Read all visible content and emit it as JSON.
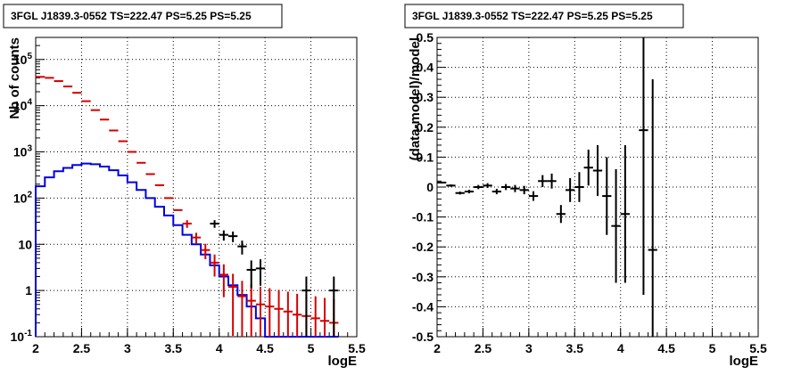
{
  "chart_data": [
    {
      "type": "histogram",
      "title": "3FGL J1839.3-0552 TS=222.47 PS=5.25 PS=5.25",
      "xlabel": "logE",
      "ylabel": "Nb of counts",
      "xlim": [
        2,
        5.5
      ],
      "ylim": [
        0.1,
        300000
      ],
      "yscale": "log",
      "grid": true,
      "x_ticks": [
        "2",
        "2.5",
        "3",
        "3.5",
        "4",
        "4.5",
        "5",
        "5.5"
      ],
      "y_ticks": [
        "10^-1",
        "1",
        "10",
        "10^2",
        "10^3",
        "10^4",
        "10^5"
      ],
      "series": [
        {
          "style": "red-markers-with-errors",
          "color": "#d40000",
          "x": [
            2.05,
            2.15,
            2.25,
            2.35,
            2.45,
            2.55,
            2.65,
            2.75,
            2.85,
            2.95,
            3.05,
            3.15,
            3.25,
            3.35,
            3.45,
            3.55,
            3.65,
            3.75,
            3.85,
            3.95,
            4.05,
            4.15,
            4.25,
            4.35,
            4.45,
            4.55,
            4.65,
            4.75,
            4.85,
            4.95,
            5.05,
            5.15,
            5.25
          ],
          "y": [
            42000,
            40000,
            34000,
            26000,
            19000,
            12500,
            8000,
            5000,
            2900,
            1700,
            1000,
            580,
            330,
            190,
            100,
            55,
            28,
            14,
            7.5,
            4,
            2.2,
            1.2,
            0.75,
            0.6,
            0.5,
            0.45,
            0.4,
            0.35,
            0.3,
            0.28,
            0.25,
            0.22,
            0.2
          ]
        },
        {
          "style": "blue-step",
          "color": "#0000e0",
          "x": [
            2.05,
            2.15,
            2.25,
            2.35,
            2.45,
            2.55,
            2.65,
            2.75,
            2.85,
            2.95,
            3.05,
            3.15,
            3.25,
            3.35,
            3.45,
            3.55,
            3.65,
            3.75,
            3.85,
            3.95,
            4.05,
            4.15,
            4.25,
            4.35,
            4.45,
            4.55,
            4.65,
            4.75,
            4.85,
            4.95,
            5.05,
            5.15,
            5.25
          ],
          "y": [
            180,
            280,
            380,
            450,
            520,
            560,
            540,
            480,
            400,
            310,
            220,
            150,
            100,
            65,
            42,
            26,
            16,
            10,
            6,
            3.5,
            2,
            1.3,
            0.8,
            0.45,
            0.25,
            0.1,
            0.1,
            0.1,
            0.1,
            0.1,
            0.1,
            0.1,
            0.1
          ]
        },
        {
          "style": "black-markers-with-errors",
          "color": "#000000",
          "x": [
            3.95,
            4.05,
            4.15,
            4.25,
            4.35,
            4.45,
            4.95,
            5.25
          ],
          "y": [
            28,
            16,
            15,
            9,
            2.8,
            3,
            1,
            1
          ]
        }
      ]
    },
    {
      "type": "scatter",
      "title": "3FGL J1839.3-0552 TS=222.47 PS=5.25 PS=5.25",
      "xlabel": "logE",
      "ylabel": "(data-model)/model",
      "xlim": [
        2,
        5.5
      ],
      "ylim": [
        -0.5,
        0.5
      ],
      "grid": true,
      "x_ticks": [
        "2",
        "2.5",
        "3",
        "3.5",
        "4",
        "4.5",
        "5",
        "5.5"
      ],
      "y_ticks": [
        "-0.5",
        "-0.4",
        "-0.3",
        "-0.2",
        "-0.1",
        "0",
        "0.1",
        "0.2",
        "0.3",
        "0.4",
        "0.5"
      ],
      "series": [
        {
          "style": "black-markers-with-errors",
          "color": "#000000",
          "x": [
            2.05,
            2.15,
            2.25,
            2.35,
            2.45,
            2.55,
            2.65,
            2.75,
            2.85,
            2.95,
            3.05,
            3.15,
            3.25,
            3.35,
            3.45,
            3.55,
            3.65,
            3.75,
            3.85,
            3.95,
            4.05,
            4.25,
            4.35
          ],
          "y": [
            0.015,
            0.005,
            -0.02,
            -0.015,
            0.0,
            0.005,
            -0.015,
            0.0,
            -0.005,
            -0.01,
            -0.03,
            0.02,
            0.02,
            -0.09,
            -0.01,
            0.0,
            0.065,
            0.055,
            -0.03,
            -0.13,
            -0.09,
            0.19,
            -0.21
          ],
          "yerr": [
            0.003,
            0.004,
            0.005,
            0.006,
            0.007,
            0.008,
            0.009,
            0.01,
            0.012,
            0.014,
            0.016,
            0.02,
            0.025,
            0.03,
            0.04,
            0.05,
            0.06,
            0.085,
            0.13,
            0.19,
            0.23,
            0.55,
            0.57
          ]
        }
      ]
    }
  ]
}
